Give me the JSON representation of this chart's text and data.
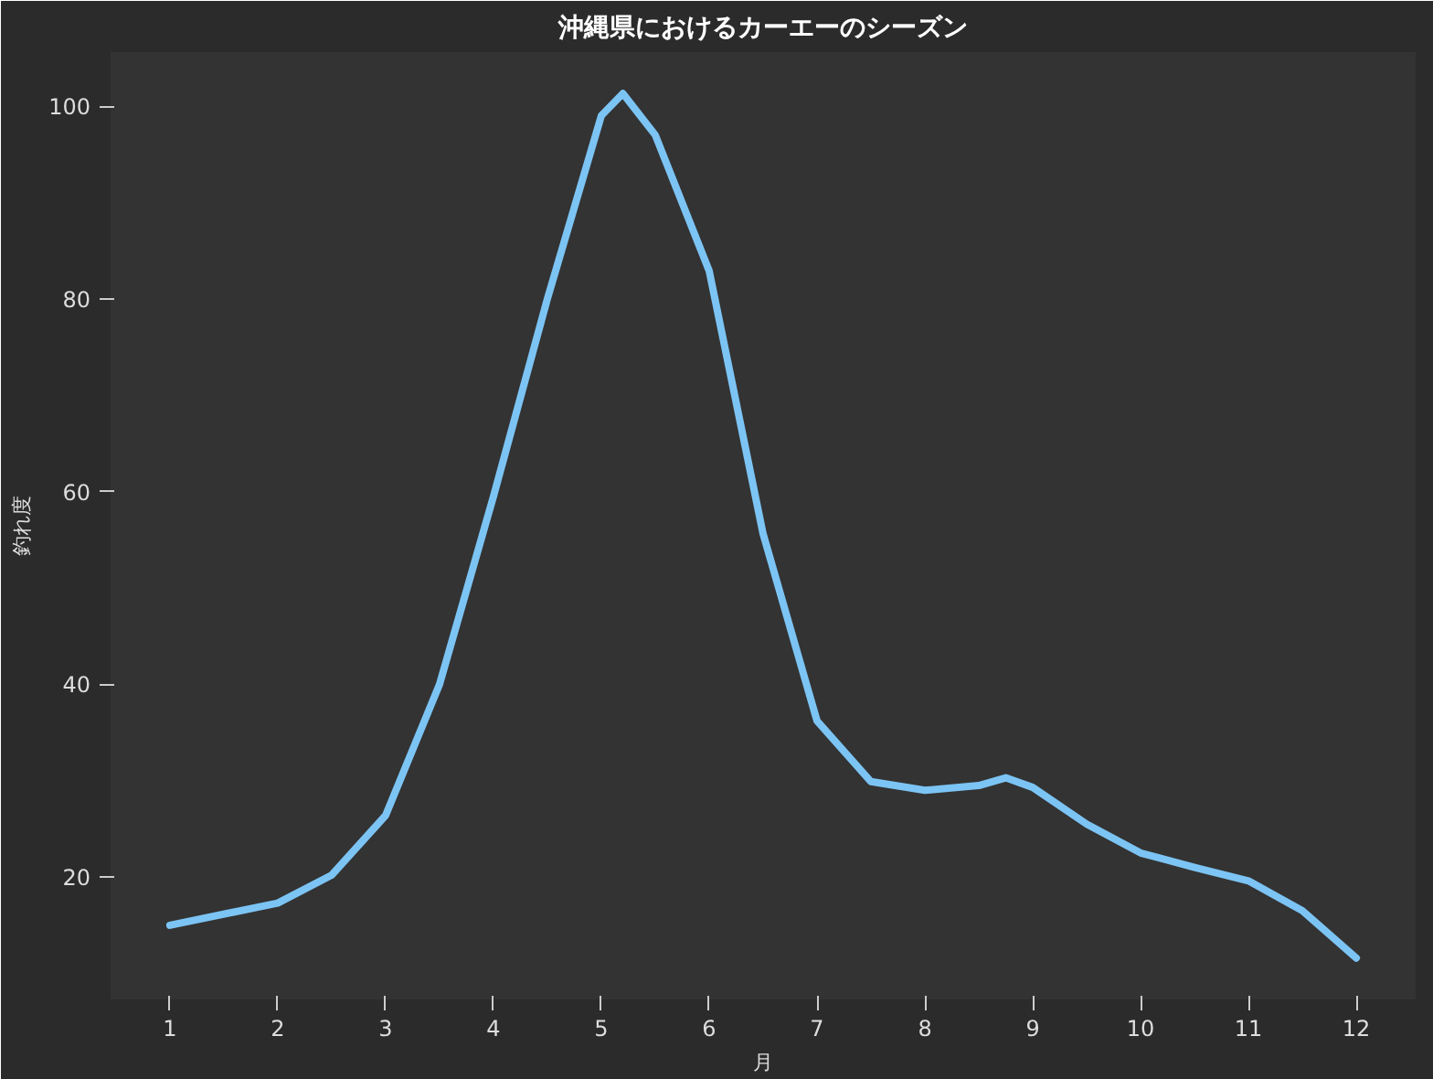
{
  "chart_data": {
    "type": "line",
    "title": "沖縄県におけるカーエーのシーズン",
    "xlabel": "月",
    "ylabel": "釣れ度",
    "x": [
      1,
      2,
      2.5,
      3,
      3.5,
      4,
      4.5,
      5,
      5.2,
      5.5,
      6,
      6.5,
      7,
      7.5,
      8,
      8.5,
      8.75,
      9,
      9.5,
      10,
      10.5,
      11,
      11.5,
      12
    ],
    "series": [
      {
        "color": "#7cc4f4",
        "values": [
          15,
          17.3,
          20.2,
          26.4,
          40,
          59.5,
          80,
          99,
          101.3,
          97,
          82.9,
          55.6,
          36.2,
          29.9,
          29,
          29.5,
          30.3,
          29.3,
          25.5,
          22.5,
          21,
          19.6,
          16.5,
          11.6
        ]
      }
    ],
    "xlim": [
      0.45,
      12.55
    ],
    "ylim": [
      7.3,
      105.6
    ],
    "xticks": [
      1,
      2,
      3,
      4,
      5,
      6,
      7,
      8,
      9,
      10,
      11,
      12
    ],
    "yticks": [
      20,
      40,
      60,
      80,
      100
    ],
    "grid": false,
    "marker": "none",
    "line_style": "solid"
  }
}
